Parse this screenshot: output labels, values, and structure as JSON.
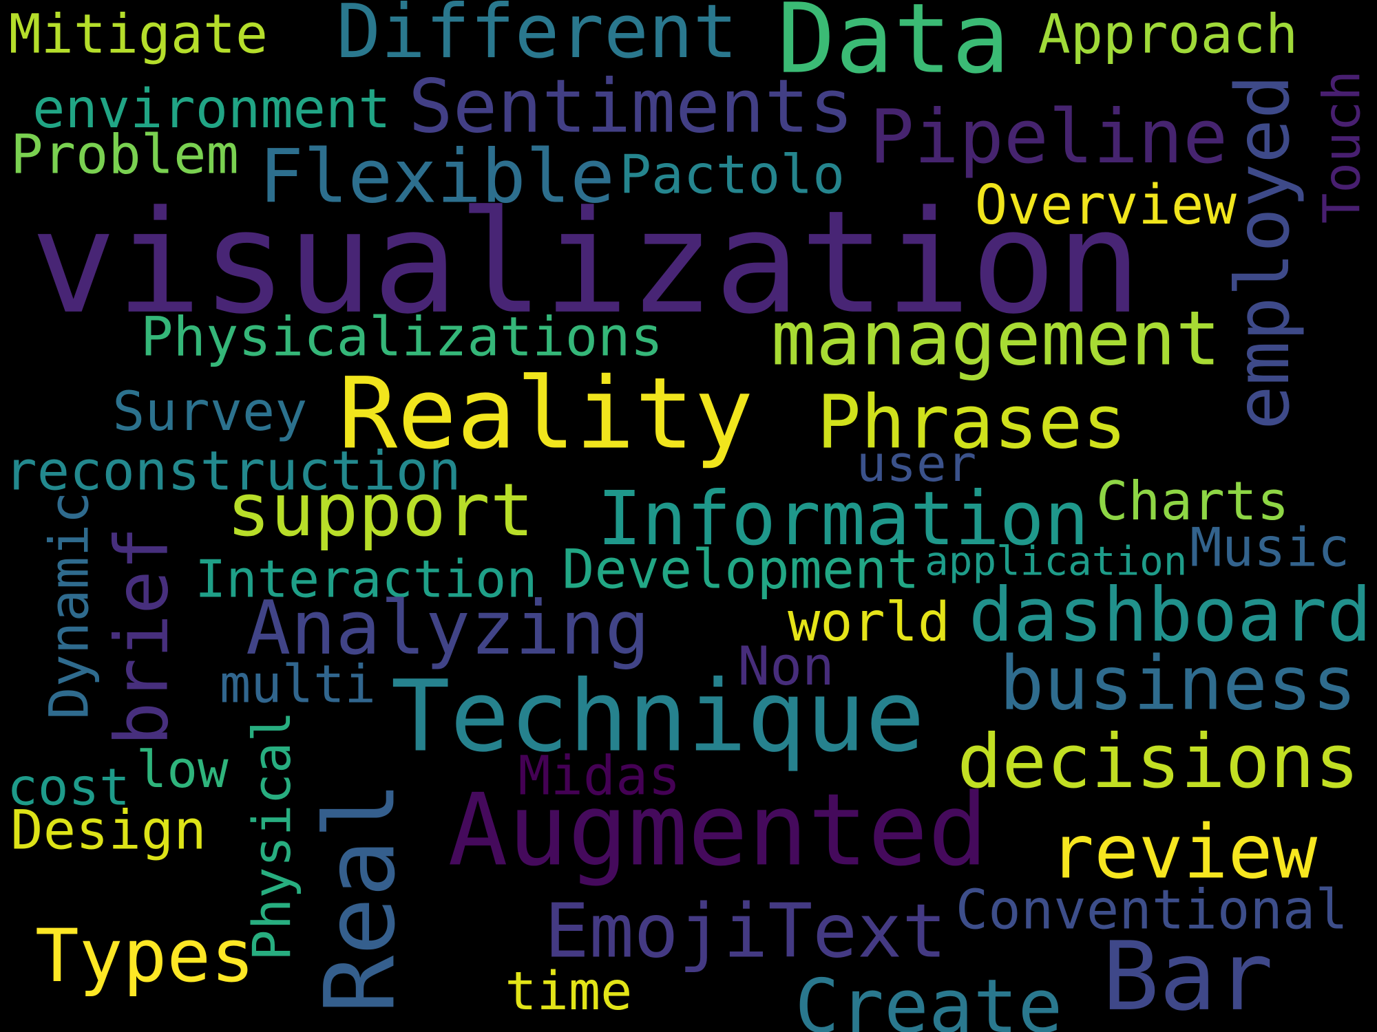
{
  "words": [
    "Mitigate",
    "Different",
    "Data",
    "Approach",
    "environment",
    "Sentiments",
    "Pipeline",
    "Problem",
    "Flexible",
    "Pactolo",
    "Overview",
    "visualization",
    "Physicalizations",
    "management",
    "Survey",
    "Reality",
    "Phrases",
    "reconstruction",
    "user",
    "Charts",
    "support",
    "Information",
    "Music",
    "Interaction",
    "Development",
    "application",
    "Analyzing",
    "dashboard",
    "world",
    "Non",
    "multi",
    "business",
    "Technique",
    "decisions",
    "low",
    "Midas",
    "cost",
    "Design",
    "Augmented",
    "review",
    "Conventional",
    "EmojiText",
    "Types",
    "Bar",
    "time",
    "Create",
    "employed",
    "Touch",
    "Dynamic",
    "brief",
    "Physical",
    "Real"
  ]
}
